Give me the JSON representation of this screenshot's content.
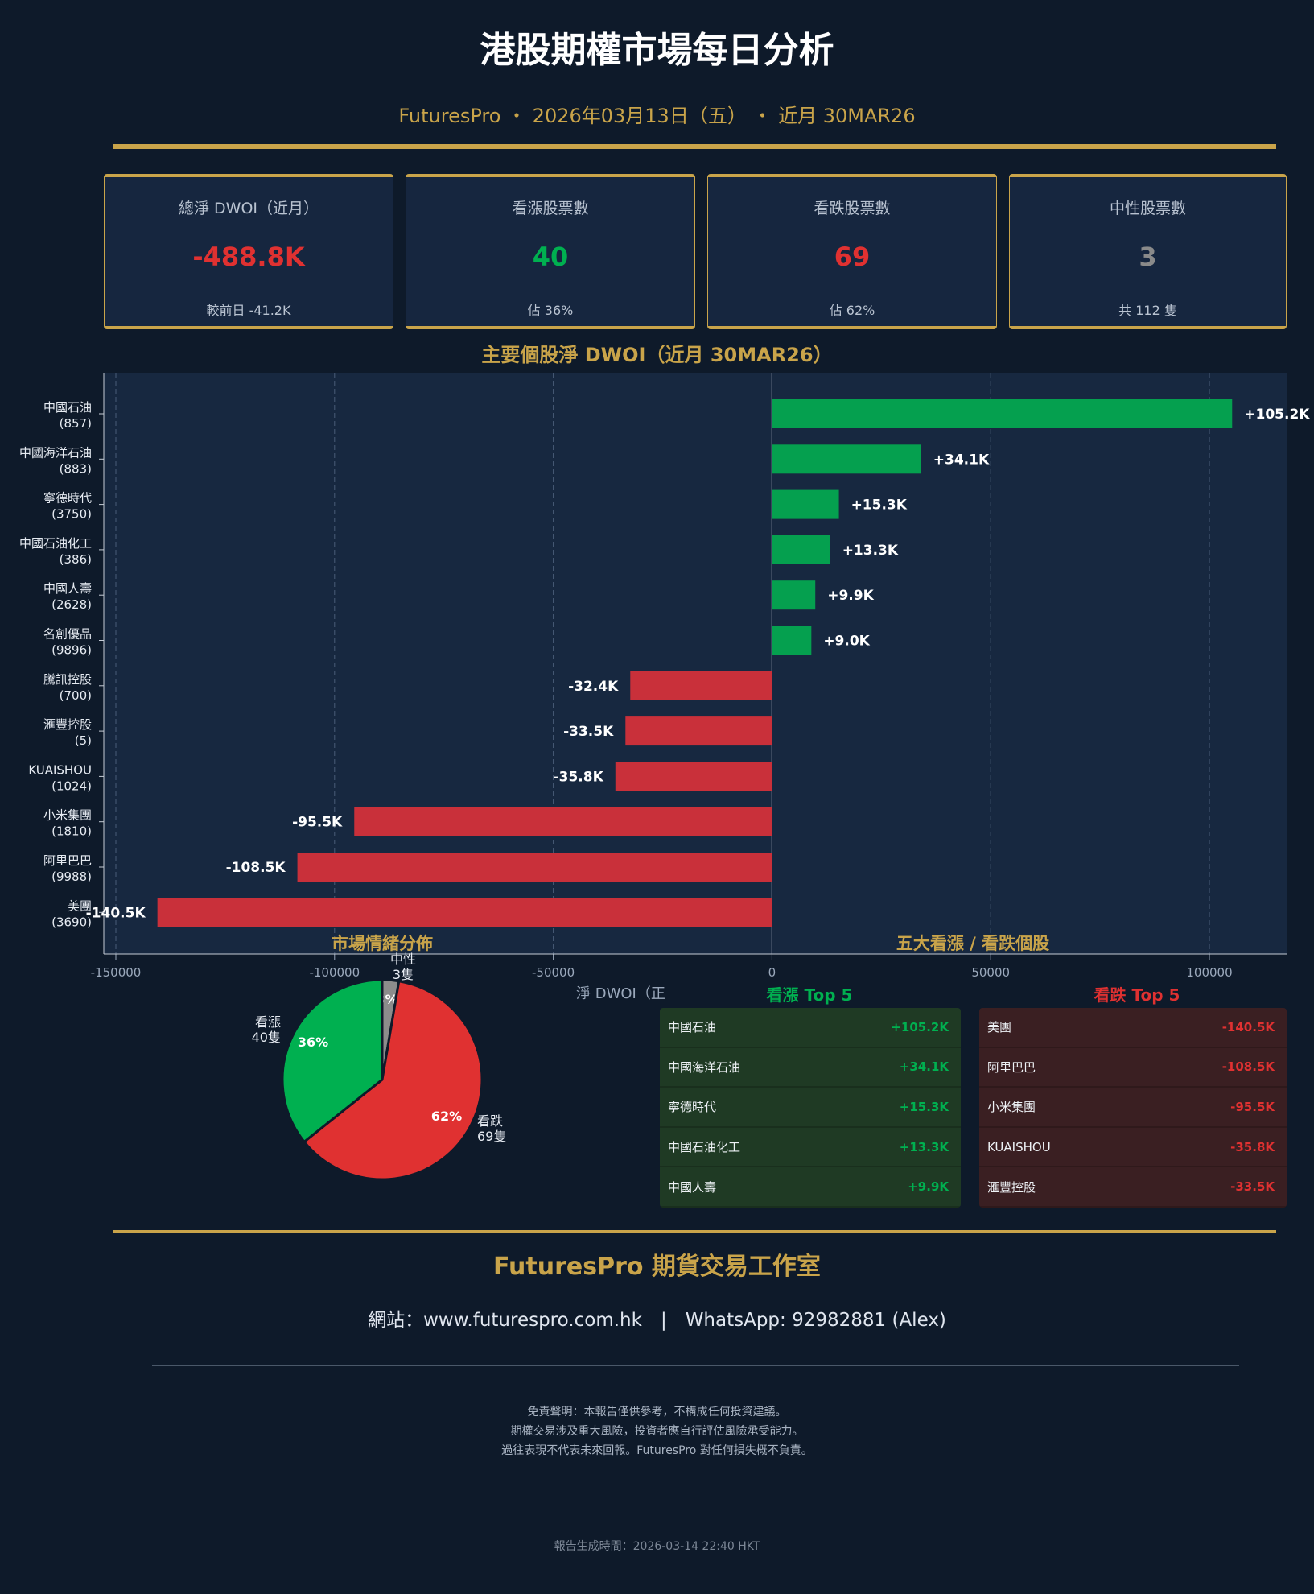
{
  "header": {
    "title": "港股期權市場每日分析",
    "subtitle": "FuturesPro ・ 2026年03月13日（五） ・ 近月 30MAR26"
  },
  "cards": [
    {
      "label": "總淨 DWOI（近月）",
      "value": "-488.8K",
      "sub": "較前日 -41.2K",
      "color": "#e03131"
    },
    {
      "label": "看漲股票數",
      "value": "40",
      "sub": "佔 36%",
      "color": "#00b050"
    },
    {
      "label": "看跌股票數",
      "value": "69",
      "sub": "佔 62%",
      "color": "#e03131"
    },
    {
      "label": "中性股票數",
      "value": "3",
      "sub": "共 112 隻",
      "color": "#8a8a8a"
    }
  ],
  "chart_data": {
    "type": "bar",
    "orientation": "horizontal",
    "title": "主要個股淨 DWOI（近月 30MAR26）",
    "xlabel": "淨 DWOI（正",
    "xlim": [
      -152500,
      117500
    ],
    "xticks": [
      -150000,
      -100000,
      -50000,
      0,
      50000,
      100000
    ],
    "xtick_labels": [
      "-150000",
      "-100000",
      "-50000",
      "0",
      "50000",
      "100000"
    ],
    "grid": true,
    "categories": [
      {
        "name": "中國石油",
        "code": "(857)"
      },
      {
        "name": "中國海洋石油",
        "code": "(883)"
      },
      {
        "name": "寧德時代",
        "code": "(3750)"
      },
      {
        "name": "中國石油化工",
        "code": "(386)"
      },
      {
        "name": "中國人壽",
        "code": "(2628)"
      },
      {
        "name": "名創優品",
        "code": "(9896)"
      },
      {
        "name": "騰訊控股",
        "code": "(700)"
      },
      {
        "name": "滙豐控股",
        "code": "(5)"
      },
      {
        "name": "KUAISHOU",
        "code": "(1024)"
      },
      {
        "name": "小米集團",
        "code": "(1810)"
      },
      {
        "name": "阿里巴巴",
        "code": "(9988)"
      },
      {
        "name": "美團",
        "code": "(3690)"
      }
    ],
    "values": [
      105200,
      34100,
      15300,
      13300,
      9900,
      9000,
      -32400,
      -33500,
      -35800,
      -95500,
      -108500,
      -140500
    ],
    "value_labels": [
      "+105.2K",
      "+34.1K",
      "+15.3K",
      "+13.3K",
      "+9.9K",
      "+9.0K",
      "-32.4K",
      "-33.5K",
      "-35.8K",
      "-95.5K",
      "-108.5K",
      "-140.5K"
    ],
    "colors": {
      "positive": "#05a04f",
      "negative": "#c9303a"
    }
  },
  "sentiment": {
    "title": "市場情緒分佈",
    "chart_data": {
      "type": "pie",
      "slices": [
        {
          "label": "中性",
          "count_label": "3隻",
          "value": 3,
          "pct": "3%",
          "color": "#8c8c8c"
        },
        {
          "label": "看跌",
          "count_label": "69隻",
          "value": 69,
          "pct": "62%",
          "color": "#e03131"
        },
        {
          "label": "看漲",
          "count_label": "40隻",
          "value": 40,
          "pct": "36%",
          "color": "#00b050"
        }
      ]
    }
  },
  "top5": {
    "title": "五大看漲 / 看跌個股",
    "bull": {
      "title": "看漲 Top 5",
      "rows": [
        {
          "name": "中國石油",
          "value": "+105.2K"
        },
        {
          "name": "中國海洋石油",
          "value": "+34.1K"
        },
        {
          "name": "寧德時代",
          "value": "+15.3K"
        },
        {
          "name": "中國石油化工",
          "value": "+13.3K"
        },
        {
          "name": "中國人壽",
          "value": "+9.9K"
        }
      ]
    },
    "bear": {
      "title": "看跌 Top 5",
      "rows": [
        {
          "name": "美團",
          "value": "-140.5K"
        },
        {
          "name": "阿里巴巴",
          "value": "-108.5K"
        },
        {
          "name": "小米集團",
          "value": "-95.5K"
        },
        {
          "name": "KUAISHOU",
          "value": "-35.8K"
        },
        {
          "name": "滙豐控股",
          "value": "-33.5K"
        }
      ]
    }
  },
  "footer": {
    "brand": "FuturesPro 期貨交易工作室",
    "contact": "網站：www.futurespro.com.hk　|　WhatsApp: 92982881 (Alex)",
    "disclaimer": [
      "免責聲明：本報告僅供參考，不構成任何投資建議。",
      "期權交易涉及重大風險，投資者應自行評估風險承受能力。",
      "過往表現不代表未來回報。FuturesPro 對任何損失概不負責。"
    ],
    "generated": "報告生成時間：2026-03-14 22:40 HKT"
  }
}
